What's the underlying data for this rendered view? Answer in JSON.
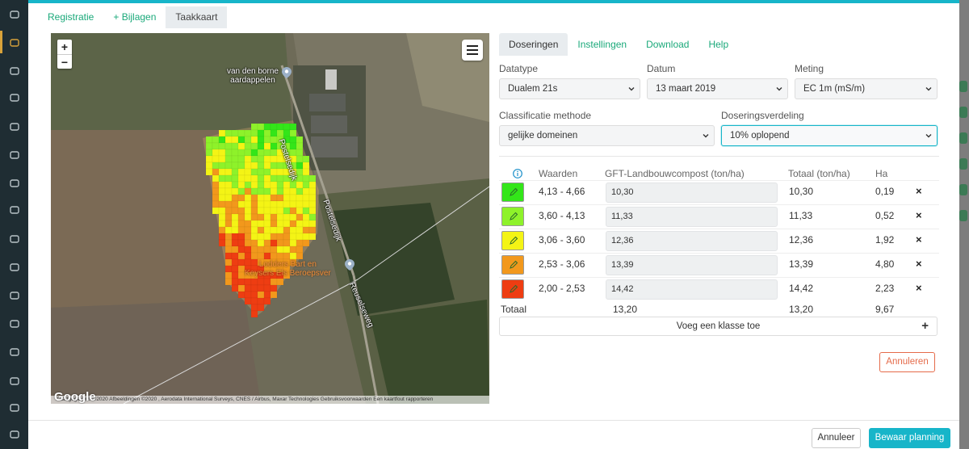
{
  "top_tabs": [
    {
      "label": "Registratie"
    },
    {
      "label": "+ Bijlagen"
    },
    {
      "label": "Taakkaart"
    }
  ],
  "map": {
    "zoom_in": "+",
    "zoom_out": "−",
    "labels": {
      "farm": "van den borne\naardappelen",
      "road1": "Postelsedijk",
      "road2": "Postelsedijk",
      "road3": "Reuselseweg",
      "poi": "Lodders Bart en\nKeysers Els Beroepsver"
    },
    "footer": "Kaartgegevens ©2020 Afbeeldingen ©2020 , Aerodata International Surveys, CNES / Airbus, Maxar Technologies   Gebruiksvoorwaarden   Een kaartfout rapporteren",
    "google": "Google"
  },
  "panel": {
    "tabs": [
      {
        "label": "Doseringen"
      },
      {
        "label": "Instellingen"
      },
      {
        "label": "Download"
      },
      {
        "label": "Help"
      }
    ],
    "datatype": {
      "label": "Datatype",
      "value": "Dualem 21s"
    },
    "datum": {
      "label": "Datum",
      "value": "13 maart 2019"
    },
    "meting": {
      "label": "Meting",
      "value": "EC 1m (mS/m)"
    },
    "classificatie": {
      "label": "Classificatie methode",
      "value": "gelijke domeinen"
    },
    "doseringsverdeling": {
      "label": "Doseringsverdeling",
      "value": "10% oplopend"
    },
    "table": {
      "headers": {
        "waarden": "Waarden",
        "product": "GFT-Landbouwcompost (ton/ha)",
        "totaal": "Totaal (ton/ha)",
        "ha": "Ha"
      },
      "rows": [
        {
          "color": "#33e619",
          "range": "4,13 - 4,66",
          "dose": "10,30",
          "total": "10,30",
          "ha": "0,19"
        },
        {
          "color": "#8ef22a",
          "range": "3,60 - 4,13",
          "dose": "11,33",
          "total": "11,33",
          "ha": "0,52"
        },
        {
          "color": "#f4f415",
          "range": "3,06 - 3,60",
          "dose": "12,36",
          "total": "12,36",
          "ha": "1,92"
        },
        {
          "color": "#f2981c",
          "range": "2,53 - 3,06",
          "dose": "13,39",
          "total": "13,39",
          "ha": "4,80"
        },
        {
          "color": "#ee3d12",
          "range": "2,00 - 2,53",
          "dose": "14,42",
          "total": "14,42",
          "ha": "2,23"
        }
      ],
      "totals": {
        "label": "Totaal",
        "dose": "13,20",
        "total": "13,20",
        "ha": "9,67"
      },
      "remove_symbol": "×"
    },
    "add_class": "Voeg een klasse toe",
    "add_plus": "+",
    "cancel_red": "Annuleren"
  },
  "footer": {
    "annuleer": "Annuleer",
    "bewaar": "Bewaar planning"
  },
  "colors": {
    "accent": "#17b5c9",
    "tab_green": "#1aa97a",
    "danger": "#e56b4a"
  }
}
